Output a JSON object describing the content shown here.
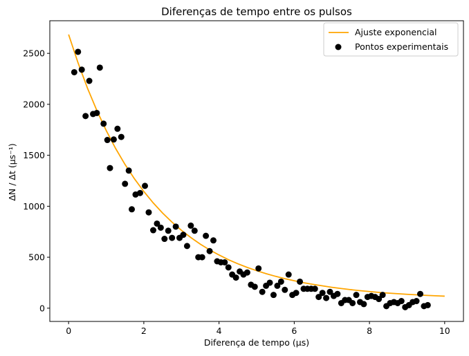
{
  "chart_data": {
    "type": "scatter",
    "title": "Diferenças de tempo entre os pulsos",
    "xlabel": "Diferença de tempo (μs)",
    "ylabel": "ΔN / Δt (μs⁻¹)",
    "xlim": [
      -0.5,
      10.5
    ],
    "ylim": [
      -130,
      2820
    ],
    "xticks": [
      0,
      2,
      4,
      6,
      8,
      10
    ],
    "xtick_labels": [
      "0",
      "2",
      "4",
      "6",
      "8",
      "10"
    ],
    "yticks": [
      0,
      500,
      1000,
      1500,
      2000,
      2500
    ],
    "ytick_labels": [
      "0",
      "500",
      "1000",
      "1500",
      "2000",
      "2500"
    ],
    "grid": false,
    "legend_position": "top-right",
    "legend": [
      "Ajuste exponencial",
      "Pontos experimentais"
    ],
    "colors": {
      "fit": "#ffa500",
      "points": "#000000"
    },
    "series": [
      {
        "name": "Ajuste exponencial",
        "kind": "line",
        "x": [
          0,
          0.25,
          0.5,
          0.75,
          1,
          1.25,
          1.5,
          1.75,
          2,
          2.25,
          2.5,
          2.75,
          3,
          3.25,
          3.5,
          3.75,
          4,
          4.25,
          4.5,
          4.75,
          5,
          5.25,
          5.5,
          5.75,
          6,
          6.25,
          6.5,
          6.75,
          7,
          7.25,
          7.5,
          7.75,
          8,
          8.25,
          8.5,
          8.75,
          9,
          9.25,
          9.5,
          9.75,
          10
        ],
        "y": [
          2685,
          2408,
          2160,
          1940,
          1743,
          1567,
          1410,
          1270,
          1145,
          1033,
          933,
          844,
          764,
          693,
          629,
          572,
          522,
          476,
          436,
          400,
          368,
          339,
          313,
          290,
          269,
          250,
          234,
          219,
          205,
          193,
          182,
          172,
          163,
          155,
          148,
          142,
          136,
          131,
          126,
          122,
          118
        ]
      },
      {
        "name": "Pontos experimentais",
        "kind": "scatter",
        "x": [
          0.15,
          0.25,
          0.35,
          0.45,
          0.55,
          0.65,
          0.75,
          0.83,
          0.93,
          1.03,
          1.1,
          1.2,
          1.3,
          1.4,
          1.5,
          1.6,
          1.68,
          1.78,
          1.9,
          2.03,
          2.13,
          2.25,
          2.35,
          2.45,
          2.55,
          2.65,
          2.75,
          2.85,
          2.95,
          3.05,
          3.15,
          3.25,
          3.35,
          3.45,
          3.55,
          3.65,
          3.75,
          3.85,
          3.95,
          4.05,
          4.15,
          4.25,
          4.35,
          4.45,
          4.55,
          4.65,
          4.75,
          4.85,
          4.95,
          5.05,
          5.15,
          5.25,
          5.35,
          5.45,
          5.55,
          5.65,
          5.75,
          5.85,
          5.95,
          6.05,
          6.15,
          6.25,
          6.35,
          6.45,
          6.55,
          6.65,
          6.75,
          6.85,
          6.95,
          7.05,
          7.15,
          7.25,
          7.35,
          7.45,
          7.55,
          7.65,
          7.75,
          7.85,
          7.95,
          8.05,
          8.15,
          8.25,
          8.35,
          8.45,
          8.55,
          8.65,
          8.75,
          8.85,
          8.95,
          9.05,
          9.15,
          9.25,
          9.35,
          9.45,
          9.55
        ],
        "y": [
          2315,
          2515,
          2340,
          1885,
          2230,
          1905,
          1915,
          2360,
          1810,
          1650,
          1375,
          1655,
          1760,
          1680,
          1220,
          1350,
          970,
          1115,
          1130,
          1200,
          940,
          765,
          830,
          790,
          680,
          760,
          690,
          800,
          690,
          720,
          610,
          810,
          760,
          500,
          500,
          710,
          560,
          665,
          460,
          450,
          450,
          400,
          330,
          300,
          360,
          330,
          350,
          230,
          210,
          390,
          160,
          220,
          250,
          130,
          220,
          260,
          180,
          330,
          130,
          150,
          260,
          190,
          190,
          190,
          190,
          110,
          150,
          100,
          160,
          120,
          140,
          50,
          80,
          80,
          50,
          130,
          60,
          40,
          110,
          120,
          110,
          90,
          130,
          20,
          50,
          60,
          50,
          70,
          10,
          30,
          60,
          70,
          140,
          20,
          30
        ]
      }
    ]
  }
}
